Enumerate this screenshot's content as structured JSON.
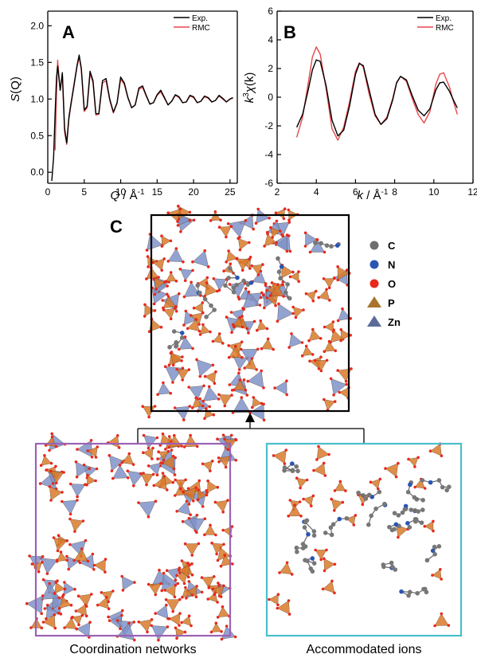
{
  "panel_labels": {
    "a": "A",
    "b": "B",
    "c": "C"
  },
  "legend_labels": {
    "exp": "Exp.",
    "rmc": "RMC"
  },
  "colors": {
    "exp": "#000000",
    "rmc": "#e8474c",
    "C_atom": "#777777",
    "N_atom": "#2a55b2",
    "O_atom": "#e8291c",
    "P_poly": "#d97a2a",
    "Zn_poly": "#7f93c9",
    "box_main": "#000000",
    "box_networks": "#9b62b4",
    "box_ions": "#4bbfcb"
  },
  "atom_legend": [
    {
      "symbol": "C",
      "kind": "sphere",
      "color": "#6e6e6e"
    },
    {
      "symbol": "N",
      "kind": "sphere",
      "color": "#2a55b2"
    },
    {
      "symbol": "O",
      "kind": "sphere",
      "color": "#e8291c"
    },
    {
      "symbol": "P",
      "kind": "tetra",
      "color": "#a8742e"
    },
    {
      "symbol": "Zn",
      "kind": "tetra",
      "color": "#5b6c99"
    }
  ],
  "captions": {
    "networks": "Coordination networks",
    "ions": "Accommodated ions"
  },
  "chart_data": [
    {
      "type": "line",
      "panel": "A",
      "ylabel_main": "S",
      "ylabel_paren": "(Q)",
      "xlabel_var": "Q",
      "xlabel_unit": " / Å",
      "xlabel_exp": "-1",
      "xlim": [
        0,
        26
      ],
      "ylim": [
        -0.15,
        2.2
      ],
      "xticks": [
        "0",
        "5",
        "10",
        "15",
        "20",
        "25"
      ],
      "yticks": [
        "0.0",
        "0.5",
        "1.0",
        "1.5",
        "2.0"
      ],
      "legend": "top-right",
      "series": [
        {
          "name": "Exp.",
          "color": "#000000",
          "x": [
            0.55,
            0.8,
            1.0,
            1.2,
            1.35,
            1.5,
            1.7,
            2.0,
            2.3,
            2.6,
            2.9,
            3.2,
            3.6,
            4.0,
            4.3,
            4.6,
            5.0,
            5.4,
            5.8,
            6.2,
            6.6,
            7.0,
            7.5,
            8.0,
            8.5,
            9.0,
            9.5,
            10.0,
            10.5,
            11.0,
            11.5,
            12.0,
            12.5,
            13.0,
            13.5,
            14.0,
            14.5,
            15.0,
            15.5,
            16.0,
            16.5,
            17.0,
            17.5,
            18.0,
            18.5,
            19.0,
            19.5,
            20.0,
            20.5,
            21.0,
            21.5,
            22.0,
            22.5,
            23.0,
            23.5,
            24.0,
            24.5,
            25.0,
            25.4
          ],
          "y": [
            -0.12,
            0.2,
            0.8,
            1.3,
            1.45,
            1.32,
            1.12,
            1.36,
            0.6,
            0.4,
            0.75,
            0.95,
            1.2,
            1.45,
            1.6,
            1.42,
            0.85,
            0.9,
            1.38,
            1.25,
            0.8,
            0.8,
            1.25,
            1.28,
            1.0,
            0.82,
            0.95,
            1.3,
            1.22,
            1.02,
            0.88,
            0.92,
            1.15,
            1.18,
            1.05,
            0.93,
            0.95,
            1.06,
            1.12,
            1.02,
            0.92,
            0.97,
            1.06,
            1.03,
            0.95,
            0.96,
            1.05,
            1.03,
            0.95,
            0.97,
            1.04,
            1.02,
            0.96,
            0.98,
            1.05,
            1.01,
            0.96,
            1.0,
            1.02
          ]
        },
        {
          "name": "RMC",
          "color": "#e8474c",
          "x": [
            1.0,
            1.2,
            1.35,
            1.5,
            1.7,
            2.0,
            2.3,
            2.6,
            2.9,
            3.2,
            3.6,
            4.0,
            4.3,
            4.6,
            5.0,
            5.4,
            5.8,
            6.2,
            6.6,
            7.0,
            7.5,
            8.0,
            8.5,
            9.0,
            9.5,
            10.0,
            10.5,
            11.0,
            11.5,
            12.0,
            12.5,
            13.0,
            13.5,
            14.0,
            14.5,
            15.0,
            15.5,
            16.0,
            16.5,
            17.0,
            17.5,
            18.0,
            18.5,
            19.0,
            19.5,
            20.0,
            20.5,
            21.0,
            21.5,
            22.0,
            22.5,
            23.0,
            23.5,
            24.0,
            24.5,
            25.0,
            25.4
          ],
          "y": [
            0.3,
            1.1,
            1.53,
            1.35,
            1.12,
            1.33,
            0.55,
            0.38,
            0.72,
            0.93,
            1.18,
            1.43,
            1.57,
            1.4,
            0.83,
            0.88,
            1.35,
            1.22,
            0.78,
            0.79,
            1.22,
            1.25,
            0.98,
            0.81,
            0.94,
            1.27,
            1.2,
            1.01,
            0.88,
            0.92,
            1.13,
            1.16,
            1.04,
            0.93,
            0.95,
            1.05,
            1.1,
            1.01,
            0.92,
            0.97,
            1.05,
            1.02,
            0.95,
            0.96,
            1.04,
            1.02,
            0.95,
            0.97,
            1.03,
            1.01,
            0.96,
            0.98,
            1.04,
            1.0,
            0.96,
            1.0,
            1.01
          ]
        }
      ]
    },
    {
      "type": "line",
      "panel": "B",
      "ylabel_pre": "k",
      "ylabel_sup": "3",
      "ylabel_chi": "χ",
      "ylabel_paren": "(k)",
      "xlabel_var": "k",
      "xlabel_unit": " / Å",
      "xlabel_exp": "-1",
      "xlim": [
        2,
        12
      ],
      "ylim": [
        -6,
        6
      ],
      "xticks": [
        "2",
        "4",
        "6",
        "8",
        "10",
        "12"
      ],
      "yticks": [
        "-6",
        "-4",
        "-2",
        "0",
        "2",
        "4",
        "6"
      ],
      "legend": "top-right",
      "series": [
        {
          "name": "Exp.",
          "color": "#000000",
          "x": [
            3.0,
            3.3,
            3.6,
            3.8,
            4.0,
            4.2,
            4.5,
            4.8,
            5.1,
            5.4,
            5.7,
            6.0,
            6.2,
            6.4,
            6.7,
            7.0,
            7.3,
            7.6,
            7.9,
            8.1,
            8.3,
            8.6,
            8.9,
            9.2,
            9.5,
            9.8,
            10.1,
            10.3,
            10.5,
            10.8,
            11.0,
            11.2
          ],
          "y": [
            -2.1,
            -1.2,
            0.6,
            1.9,
            2.6,
            2.5,
            0.8,
            -1.6,
            -2.7,
            -2.3,
            -0.6,
            1.6,
            2.35,
            2.2,
            0.5,
            -1.2,
            -1.9,
            -1.5,
            -0.2,
            1.0,
            1.45,
            1.2,
            0.1,
            -0.9,
            -1.3,
            -0.8,
            0.5,
            1.0,
            1.05,
            0.4,
            -0.2,
            -0.75
          ]
        },
        {
          "name": "RMC",
          "color": "#e8474c",
          "x": [
            3.0,
            3.3,
            3.6,
            3.8,
            4.0,
            4.2,
            4.5,
            4.8,
            5.1,
            5.4,
            5.7,
            6.0,
            6.2,
            6.4,
            6.7,
            7.0,
            7.3,
            7.6,
            7.9,
            8.1,
            8.3,
            8.6,
            8.9,
            9.2,
            9.5,
            9.8,
            10.1,
            10.3,
            10.5,
            10.8,
            11.0,
            11.2
          ],
          "y": [
            -2.8,
            -1.4,
            1.1,
            2.8,
            3.5,
            3.0,
            0.6,
            -2.2,
            -3.0,
            -2.1,
            -0.3,
            1.8,
            2.4,
            2.1,
            0.2,
            -1.3,
            -1.9,
            -1.4,
            -0.1,
            1.05,
            1.45,
            1.1,
            -0.1,
            -1.2,
            -1.8,
            -1.0,
            0.9,
            1.6,
            1.7,
            0.7,
            -0.3,
            -1.2
          ]
        }
      ]
    }
  ]
}
